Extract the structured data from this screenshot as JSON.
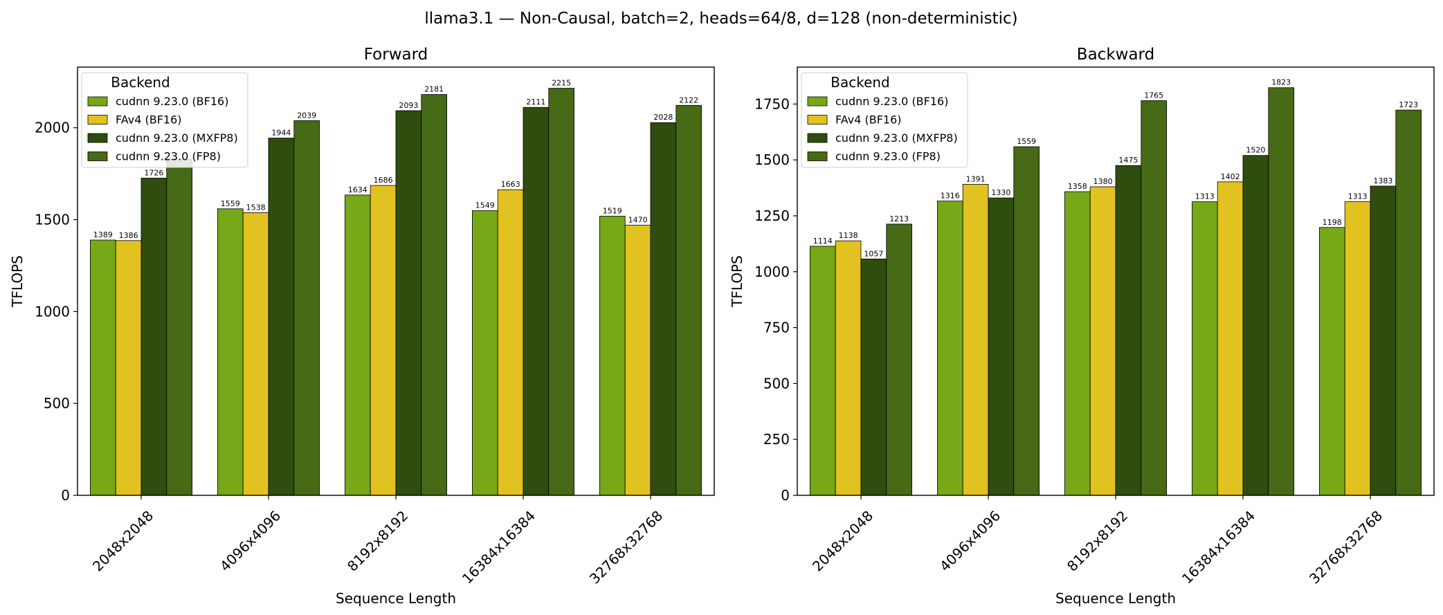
{
  "figure": {
    "suptitle": "llama3.1 — Non-Causal, batch=2, heads=64/8, d=128 (non-deterministic)"
  },
  "chart_data": [
    {
      "type": "bar",
      "title": "Forward",
      "xlabel": "Sequence Length",
      "ylabel": "TFLOPS",
      "ylim": [
        0,
        2330
      ],
      "yticks": [
        0,
        500,
        1000,
        1500,
        2000
      ],
      "categories": [
        "2048x2048",
        "4096x4096",
        "8192x8192",
        "16384x16384",
        "32768x32768"
      ],
      "legend": {
        "title": "Backend",
        "placement": "top-left"
      },
      "series": [
        {
          "name": "cudnn 9.23.0 (BF16)",
          "color": "#76a817",
          "values": [
            1389,
            1559,
            1634,
            1549,
            1519
          ]
        },
        {
          "name": "FAv4 (BF16)",
          "color": "#e2c221",
          "values": [
            1386,
            1538,
            1686,
            1663,
            1470
          ]
        },
        {
          "name": "cudnn 9.23.0 (MXFP8)",
          "color": "#2e4d0e",
          "values": [
            1726,
            1944,
            2093,
            2111,
            2028
          ]
        },
        {
          "name": "cudnn 9.23.0 (FP8)",
          "color": "#466a15",
          "values": [
            1830,
            2039,
            2181,
            2215,
            2122
          ]
        }
      ],
      "data_labels": [
        [
          "1389",
          "1559",
          "1634",
          "1549",
          "1519"
        ],
        [
          "1386",
          "1538",
          "1686",
          "1663",
          "1470"
        ],
        [
          "1726",
          "1944",
          "2093",
          "2111",
          "2028"
        ],
        [
          "",
          "2039",
          "2181",
          "2215",
          "2122"
        ]
      ],
      "grid": false
    },
    {
      "type": "bar",
      "title": "Backward",
      "xlabel": "Sequence Length",
      "ylabel": "TFLOPS",
      "ylim": [
        0,
        1915
      ],
      "yticks": [
        0,
        250,
        500,
        750,
        1000,
        1250,
        1500,
        1750
      ],
      "categories": [
        "2048x2048",
        "4096x4096",
        "8192x8192",
        "16384x16384",
        "32768x32768"
      ],
      "legend": {
        "title": "Backend",
        "placement": "top-left"
      },
      "series": [
        {
          "name": "cudnn 9.23.0 (BF16)",
          "color": "#76a817",
          "values": [
            1114,
            1316,
            1358,
            1313,
            1198
          ]
        },
        {
          "name": "FAv4 (BF16)",
          "color": "#e2c221",
          "values": [
            1138,
            1391,
            1380,
            1402,
            1313
          ]
        },
        {
          "name": "cudnn 9.23.0 (MXFP8)",
          "color": "#2e4d0e",
          "values": [
            1057,
            1330,
            1475,
            1520,
            1383
          ]
        },
        {
          "name": "cudnn 9.23.0 (FP8)",
          "color": "#466a15",
          "values": [
            1213,
            1559,
            1765,
            1823,
            1723
          ]
        }
      ],
      "data_labels": [
        [
          "1114",
          "1316",
          "1358",
          "1313",
          "1198"
        ],
        [
          "1138",
          "1391",
          "1380",
          "1402",
          "1313"
        ],
        [
          "1057",
          "1330",
          "1475",
          "1520",
          "1383"
        ],
        [
          "1213",
          "1559",
          "1765",
          "1823",
          "1723"
        ]
      ],
      "grid": false
    }
  ]
}
